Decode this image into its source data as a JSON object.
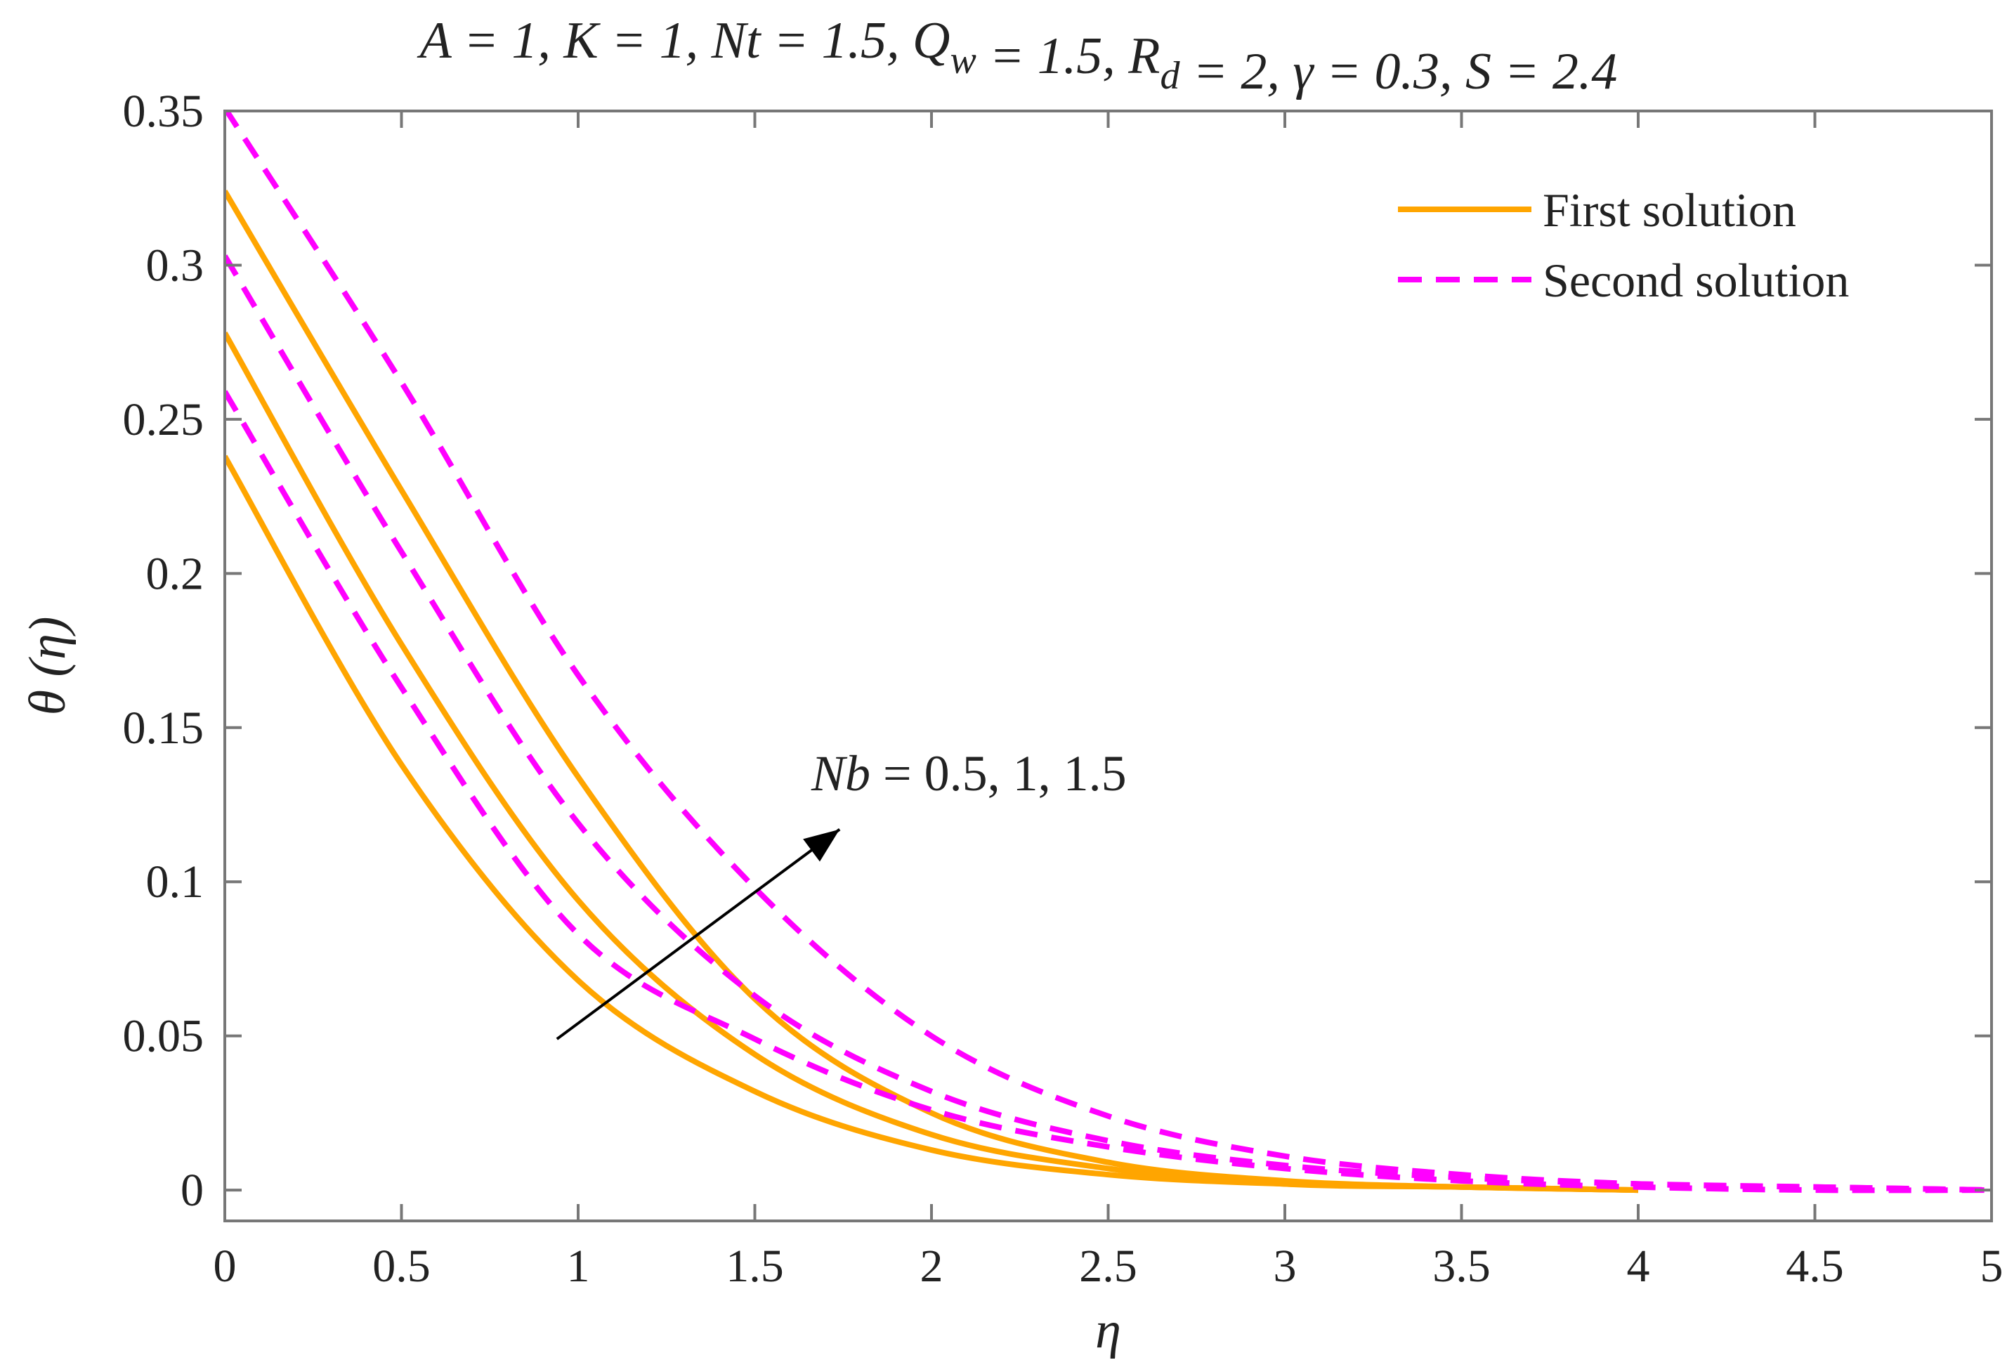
{
  "chart_data": {
    "type": "line",
    "title": "A = 1, K = 1, Nt = 1.5, Q_w = 1.5, R_d = 2, γ = 0.3, S = 2.4",
    "xlabel": "η",
    "ylabel": "θ (η)",
    "xlim": [
      0,
      5
    ],
    "ylim": [
      -0.01,
      0.35
    ],
    "x_ticks": [
      "0",
      "0.5",
      "1",
      "1.5",
      "2",
      "2.5",
      "3",
      "3.5",
      "4",
      "4.5",
      "5"
    ],
    "y_ticks": [
      "0",
      "0.05",
      "0.1",
      "0.15",
      "0.2",
      "0.25",
      "0.3",
      "0.35"
    ],
    "grid": false,
    "legend_position": "top-right",
    "legend": [
      {
        "label": "First solution",
        "style": "solid",
        "color": "#FFA500"
      },
      {
        "label": "Second solution",
        "style": "dashed",
        "color": "#FF00FF"
      }
    ],
    "annotation": {
      "text": "Nb = 0.5, 1, 1.5",
      "arrow_from": [
        0.94,
        0.049
      ],
      "arrow_to": [
        1.74,
        0.117
      ]
    },
    "series": [
      {
        "group": "First solution",
        "x": [
          0,
          0.5,
          1,
          1.5,
          2,
          2.5,
          3,
          3.5,
          4
        ],
        "y": [
          0.238,
          0.138,
          0.068,
          0.032,
          0.013,
          0.005,
          0.002,
          0.001,
          0.0
        ]
      },
      {
        "group": "First solution",
        "x": [
          0,
          0.5,
          1,
          1.5,
          2,
          2.5,
          3,
          3.5,
          4
        ],
        "y": [
          0.278,
          0.177,
          0.094,
          0.044,
          0.018,
          0.007,
          0.002,
          0.001,
          0.0
        ]
      },
      {
        "group": "First solution",
        "x": [
          0,
          0.5,
          1,
          1.5,
          2,
          2.5,
          3,
          3.5,
          4
        ],
        "y": [
          0.324,
          0.227,
          0.134,
          0.062,
          0.025,
          0.009,
          0.003,
          0.001,
          0.0
        ]
      },
      {
        "group": "Second solution",
        "x": [
          0,
          0.5,
          1,
          1.5,
          2,
          2.5,
          3,
          3.5,
          4,
          4.5,
          5
        ],
        "y": [
          0.259,
          0.163,
          0.083,
          0.049,
          0.026,
          0.014,
          0.007,
          0.003,
          0.001,
          0.0,
          0.0
        ]
      },
      {
        "group": "Second solution",
        "x": [
          0,
          0.5,
          1,
          1.5,
          2,
          2.5,
          3,
          3.5,
          4,
          4.5,
          5
        ],
        "y": [
          0.303,
          0.207,
          0.119,
          0.063,
          0.032,
          0.016,
          0.008,
          0.004,
          0.002,
          0.001,
          0.0
        ]
      },
      {
        "group": "Second solution",
        "x": [
          0,
          0.5,
          1,
          1.5,
          2,
          2.5,
          3,
          3.5,
          4,
          4.5,
          5
        ],
        "y": [
          0.351,
          0.262,
          0.167,
          0.098,
          0.05,
          0.024,
          0.011,
          0.005,
          0.002,
          0.001,
          0.0
        ]
      }
    ]
  }
}
